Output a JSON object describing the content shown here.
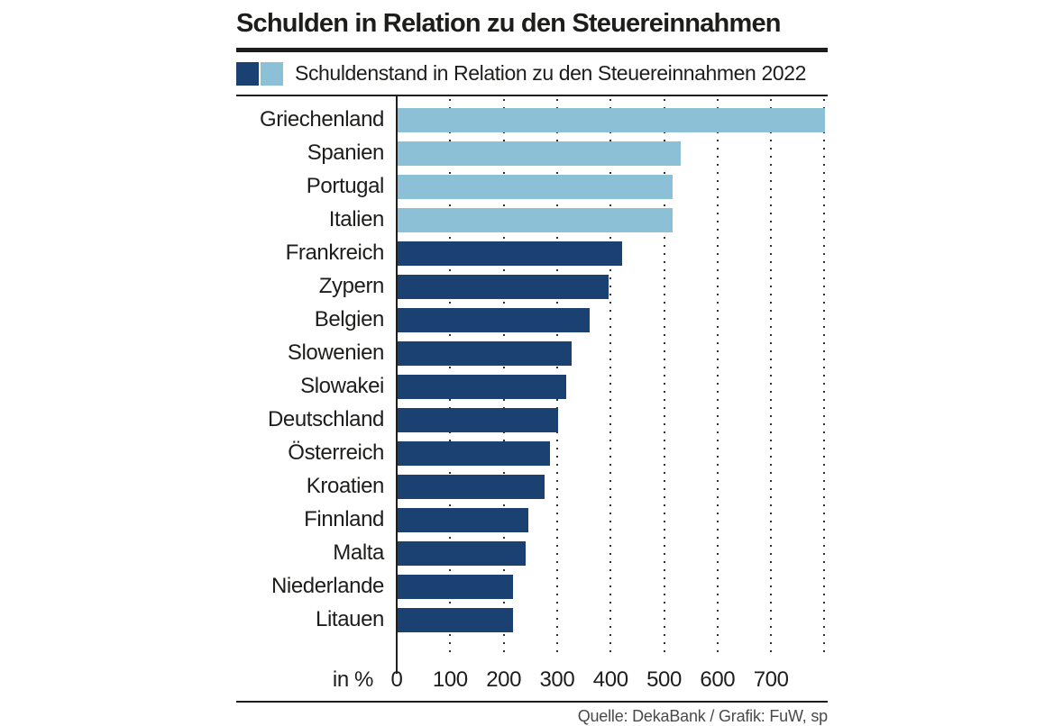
{
  "title": "Schulden in Relation zu den Steuereinnahmen",
  "legend": {
    "label": "Schuldenstand in Relation zu den Steuereinnahmen 2022"
  },
  "axis": {
    "unit_label": "in %"
  },
  "source": "Quelle: DekaBank / Grafik: FuW, sp",
  "colors": {
    "dark_blue": "#1b4173",
    "light_blue": "#8cc0d6",
    "text": "#1d1d1b",
    "source_text": "#4a4a4a",
    "gridline_dots": "#333333"
  },
  "chart_data": {
    "type": "bar",
    "orientation": "horizontal",
    "title": "Schulden in Relation zu den Steuereinnahmen",
    "series_name": "Schuldenstand in Relation zu den Steuereinnahmen 2022",
    "xlabel": "in %",
    "xlim": [
      0,
      806
    ],
    "xticks": [
      0,
      100,
      200,
      300,
      400,
      500,
      600,
      700
    ],
    "gridlines": [
      100,
      200,
      300,
      400,
      500,
      600,
      700,
      800
    ],
    "grid": "dotted-vertical",
    "legend_position": "top",
    "categories": [
      "Griechenland",
      "Spanien",
      "Portugal",
      "Italien",
      "Frankreich",
      "Zypern",
      "Belgien",
      "Slowenien",
      "Slowakei",
      "Deutschland",
      "Österreich",
      "Kroatien",
      "Finnland",
      "Malta",
      "Niederlande",
      "Litauen"
    ],
    "values": [
      800,
      530,
      515,
      515,
      420,
      395,
      360,
      325,
      315,
      300,
      285,
      275,
      245,
      240,
      215,
      215
    ],
    "groups": [
      "light",
      "light",
      "light",
      "light",
      "dark",
      "dark",
      "dark",
      "dark",
      "dark",
      "dark",
      "dark",
      "dark",
      "dark",
      "dark",
      "dark",
      "dark"
    ]
  }
}
